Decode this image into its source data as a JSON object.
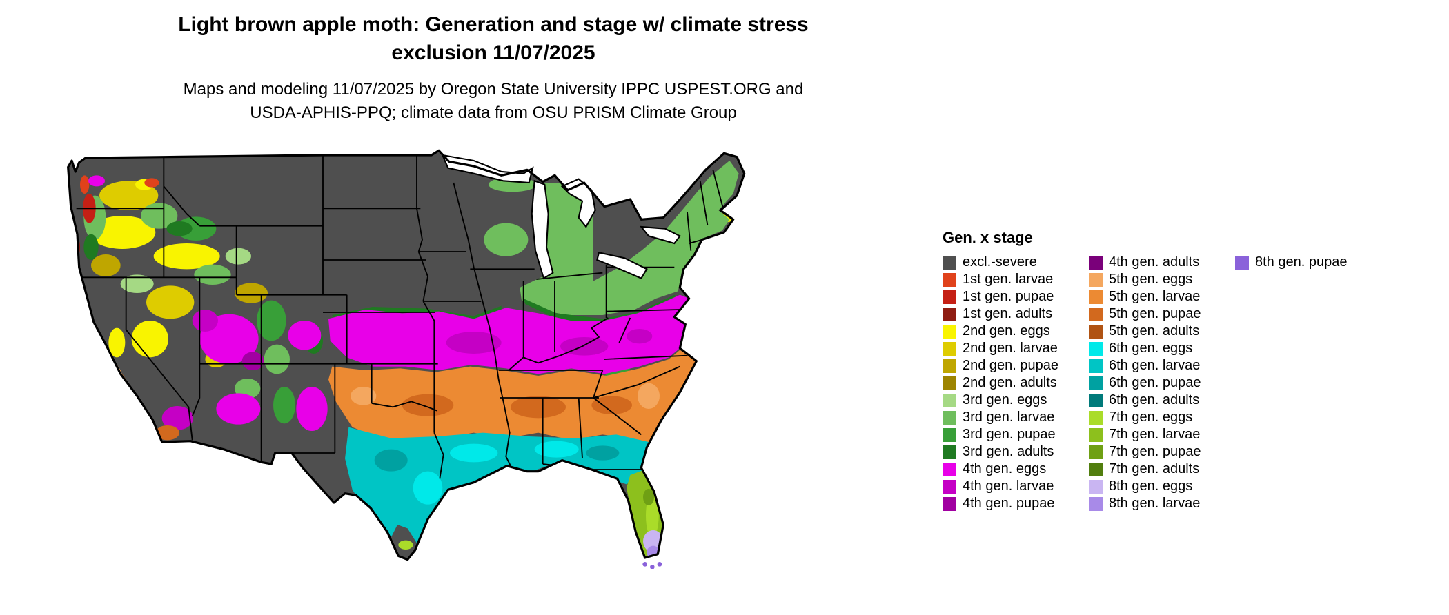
{
  "header": {
    "title_lines": [
      "Light brown apple moth: Generation and stage w/ climate stress",
      "exclusion 11/07/2025"
    ],
    "subtitle_lines": [
      "Maps and modeling 11/07/2025 by Oregon State University IPPC USPEST.ORG and",
      "USDA-APHIS-PPQ; climate data from OSU PRISM Climate Group"
    ]
  },
  "legend": {
    "title": "Gen. x stage",
    "rows_per_column": 15,
    "items": [
      {
        "key": "excl_severe",
        "label": "excl.-severe",
        "color": "#4F4F4F"
      },
      {
        "key": "g1_larvae",
        "label": "1st gen. larvae",
        "color": "#E0421B"
      },
      {
        "key": "g1_pupae",
        "label": "1st gen. pupae",
        "color": "#C52015"
      },
      {
        "key": "g1_adults",
        "label": "1st gen. adults",
        "color": "#8F1D12"
      },
      {
        "key": "g2_eggs",
        "label": "2nd gen. eggs",
        "color": "#F9F400"
      },
      {
        "key": "g2_larvae",
        "label": "2nd gen. larvae",
        "color": "#DECC00"
      },
      {
        "key": "g2_pupae",
        "label": "2nd gen. pupae",
        "color": "#BFA600"
      },
      {
        "key": "g2_adults",
        "label": "2nd gen. adults",
        "color": "#9D8400"
      },
      {
        "key": "g3_eggs",
        "label": "3rd gen. eggs",
        "color": "#A5D984"
      },
      {
        "key": "g3_larvae",
        "label": "3rd gen. larvae",
        "color": "#6FBE5D"
      },
      {
        "key": "g3_pupae",
        "label": "3rd gen. pupae",
        "color": "#389F38"
      },
      {
        "key": "g3_adults",
        "label": "3rd gen. adults",
        "color": "#1F7A21"
      },
      {
        "key": "g4_eggs",
        "label": "4th gen. eggs",
        "color": "#E800E8"
      },
      {
        "key": "g4_larvae",
        "label": "4th gen. larvae",
        "color": "#C500C5"
      },
      {
        "key": "g4_pupae",
        "label": "4th gen. pupae",
        "color": "#A100A1"
      },
      {
        "key": "g4_adults",
        "label": "4th gen. adults",
        "color": "#7A007A"
      },
      {
        "key": "g5_eggs",
        "label": "5th gen. eggs",
        "color": "#F4A75F"
      },
      {
        "key": "g5_larvae",
        "label": "5th gen. larvae",
        "color": "#EC8A33"
      },
      {
        "key": "g5_pupae",
        "label": "5th gen. pupae",
        "color": "#D2691E"
      },
      {
        "key": "g5_adults",
        "label": "5th gen. adults",
        "color": "#B05313"
      },
      {
        "key": "g6_eggs",
        "label": "6th gen. eggs",
        "color": "#00E9E9"
      },
      {
        "key": "g6_larvae",
        "label": "6th gen. larvae",
        "color": "#00C5C5"
      },
      {
        "key": "g6_pupae",
        "label": "6th gen. pupae",
        "color": "#00A1A1"
      },
      {
        "key": "g6_adults",
        "label": "6th gen. adults",
        "color": "#007A7A"
      },
      {
        "key": "g7_eggs",
        "label": "7th gen. eggs",
        "color": "#AADC29"
      },
      {
        "key": "g7_larvae",
        "label": "7th gen. larvae",
        "color": "#8DC01D"
      },
      {
        "key": "g7_pupae",
        "label": "7th gen. pupae",
        "color": "#6FA014"
      },
      {
        "key": "g7_adults",
        "label": "7th gen. adults",
        "color": "#517E0E"
      },
      {
        "key": "g8_eggs",
        "label": "8th gen. eggs",
        "color": "#C9B5F2"
      },
      {
        "key": "g8_larvae",
        "label": "8th gen. larvae",
        "color": "#A88AE8"
      },
      {
        "key": "g8_pupae",
        "label": "8th gen. pupae",
        "color": "#8A62DA"
      }
    ]
  }
}
